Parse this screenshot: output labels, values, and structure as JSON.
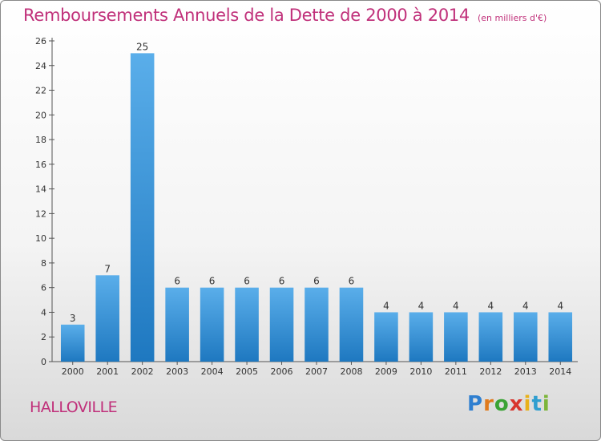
{
  "title": "Remboursements Annuels de la Dette de 2000 à 2014",
  "unit": "(en milliers d'€)",
  "town": "HALLOVILLE",
  "logo": [
    "P",
    "r",
    "o",
    "x",
    "i",
    "t",
    "i"
  ],
  "colors": {
    "title": "#c0307a",
    "bar_light": "#5aaeea",
    "bar_dark": "#1e78c0"
  },
  "chart_data": {
    "type": "bar",
    "title": "Remboursements Annuels de la Dette de 2000 à 2014",
    "categories": [
      "2000",
      "2001",
      "2002",
      "2003",
      "2004",
      "2005",
      "2006",
      "2007",
      "2008",
      "2009",
      "2010",
      "2011",
      "2012",
      "2013",
      "2014"
    ],
    "values": [
      3,
      7,
      25,
      6,
      6,
      6,
      6,
      6,
      6,
      4,
      4,
      4,
      4,
      4,
      4
    ],
    "yticks": [
      0,
      2,
      4,
      6,
      8,
      10,
      12,
      14,
      16,
      18,
      20,
      22,
      24,
      26
    ],
    "ylim": [
      0,
      26
    ],
    "grid": false,
    "legend": "none",
    "data_labels": true
  }
}
